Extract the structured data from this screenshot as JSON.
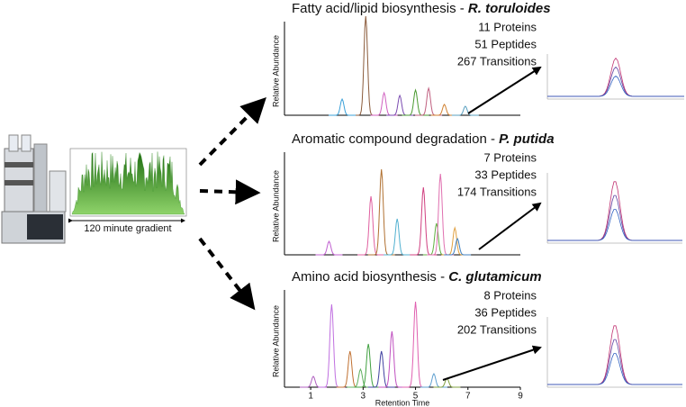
{
  "gradient_label": "120 minute gradient",
  "y_axis_label": "Relative Abundance",
  "x_axis_label": "Retention Time",
  "xlim": [
    0,
    9
  ],
  "xticks": [
    1,
    3,
    5,
    7,
    9
  ],
  "panels": [
    {
      "title": "Fatty acid/lipid biosynthesis - ",
      "organism": "R. toruloides",
      "counts": [
        "11 Proteins",
        "51 Peptides",
        "267 Transitions"
      ]
    },
    {
      "title": "Aromatic compound degradation - ",
      "organism": "P. putida",
      "counts": [
        "7 Proteins",
        "33 Peptides",
        "174 Transitions"
      ]
    },
    {
      "title": "Amino acid biosynthesis - ",
      "organism": "C. glutamicum",
      "counts": [
        "8 Proteins",
        "36 Peptides",
        "202 Transitions"
      ]
    }
  ]
}
